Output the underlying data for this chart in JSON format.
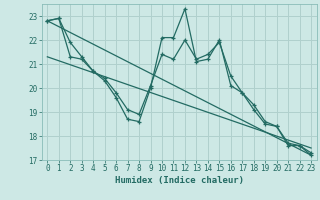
{
  "title": "",
  "xlabel": "Humidex (Indice chaleur)",
  "background_color": "#cde8e5",
  "grid_color": "#b0d0cd",
  "line_color": "#236b63",
  "xlim": [
    -0.5,
    23.5
  ],
  "ylim": [
    17,
    23.5
  ],
  "yticks": [
    17,
    18,
    19,
    20,
    21,
    22,
    23
  ],
  "xticks": [
    0,
    1,
    2,
    3,
    4,
    5,
    6,
    7,
    8,
    9,
    10,
    11,
    12,
    13,
    14,
    15,
    16,
    17,
    18,
    19,
    20,
    21,
    22,
    23
  ],
  "line1_x": [
    0,
    1,
    2,
    3,
    4,
    5,
    6,
    7,
    8,
    9,
    10,
    11,
    12,
    13,
    14,
    15,
    16,
    17,
    18,
    19,
    20,
    21,
    22,
    23
  ],
  "line1_y": [
    22.8,
    22.9,
    21.9,
    21.3,
    20.7,
    20.3,
    19.6,
    18.7,
    18.6,
    20.0,
    22.1,
    22.1,
    23.3,
    21.1,
    21.2,
    22.0,
    20.1,
    19.8,
    19.1,
    18.5,
    18.4,
    17.6,
    17.6,
    17.2
  ],
  "line2_x": [
    0,
    1,
    2,
    3,
    4,
    5,
    6,
    7,
    8,
    9,
    10,
    11,
    12,
    13,
    14,
    15,
    16,
    17,
    18,
    19,
    20,
    21,
    22,
    23
  ],
  "line2_y": [
    22.8,
    22.9,
    21.3,
    21.2,
    20.7,
    20.4,
    19.8,
    19.1,
    18.9,
    20.1,
    21.4,
    21.2,
    22.0,
    21.2,
    21.4,
    21.9,
    20.5,
    19.8,
    19.3,
    18.6,
    18.4,
    17.7,
    17.6,
    17.3
  ],
  "line3_x": [
    0,
    23
  ],
  "line3_y": [
    22.8,
    17.2
  ],
  "line4_x": [
    0,
    23
  ],
  "line4_y": [
    21.3,
    17.5
  ],
  "tick_fontsize": 5.5,
  "xlabel_fontsize": 6.5
}
